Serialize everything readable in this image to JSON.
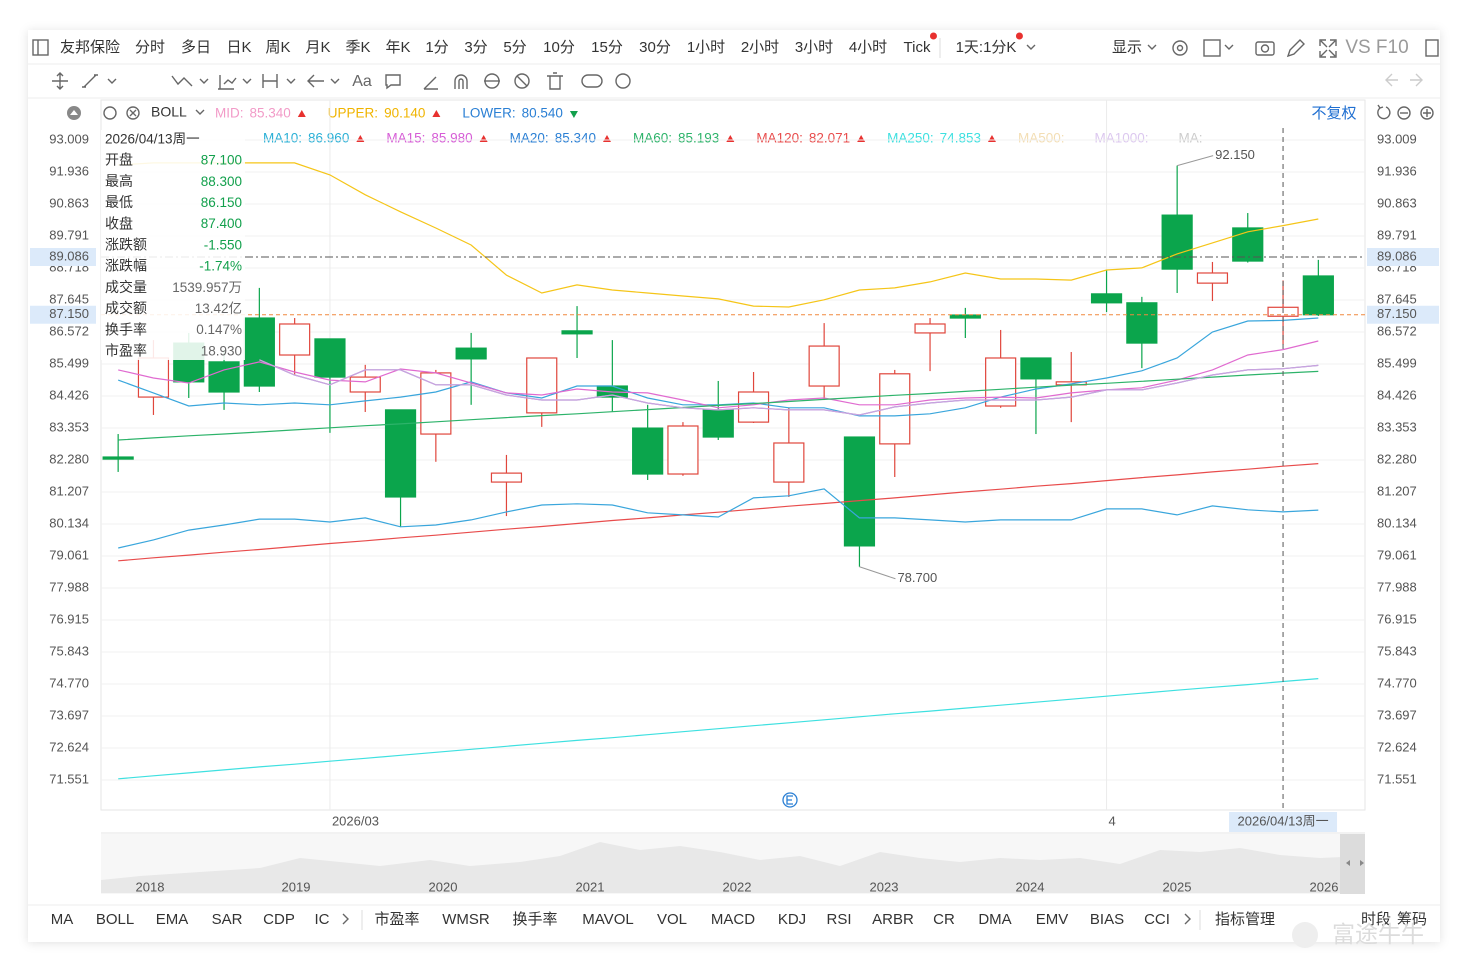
{
  "toolbar": {
    "symbol": "友邦保险",
    "periods": [
      {
        "label": "分时"
      },
      {
        "label": "多日"
      },
      {
        "label": "日K",
        "active": true
      },
      {
        "label": "周K"
      },
      {
        "label": "月K"
      },
      {
        "label": "季K"
      },
      {
        "label": "年K"
      },
      {
        "label": "1分"
      },
      {
        "label": "3分"
      },
      {
        "label": "5分"
      },
      {
        "label": "10分"
      },
      {
        "label": "15分"
      },
      {
        "label": "30分"
      },
      {
        "label": "1小时"
      },
      {
        "label": "2小时"
      },
      {
        "label": "3小时"
      },
      {
        "label": "4小时"
      },
      {
        "label": "Tick",
        "dot": true
      },
      {
        "label": "1天:1分K",
        "dot": true
      }
    ],
    "display": "显示",
    "compare": "VS F10",
    "font_tool": "Aa"
  },
  "adjust": "不复权",
  "info_panel": {
    "date": "2026/04/13周一",
    "rows": [
      {
        "label": "开盘",
        "value": "87.100",
        "color": "#12a04c"
      },
      {
        "label": "最高",
        "value": "88.300",
        "color": "#12a04c"
      },
      {
        "label": "最低",
        "value": "86.150",
        "color": "#12a04c"
      },
      {
        "label": "收盘",
        "value": "87.400",
        "color": "#12a04c"
      },
      {
        "label": "涨跌额",
        "value": "-1.550",
        "color": "#12a04c"
      },
      {
        "label": "涨跌幅",
        "value": "-1.74%",
        "color": "#12a04c"
      },
      {
        "label": "成交量",
        "value": "1539.957万",
        "color": "#666"
      },
      {
        "label": "成交额",
        "value": "13.42亿",
        "color": "#666"
      },
      {
        "label": "换手率",
        "value": "0.147%",
        "color": "#666"
      },
      {
        "label": "市盈率",
        "value": "18.930",
        "color": "#666"
      }
    ]
  },
  "navigator": {
    "years": [
      "2018",
      "2019",
      "2020",
      "2021",
      "2022",
      "2023",
      "2024",
      "2025",
      "2026"
    ]
  },
  "tabs": {
    "left": [
      {
        "label": "MA",
        "active": true
      },
      {
        "label": "BOLL",
        "active": true
      },
      {
        "label": "EMA"
      },
      {
        "label": "SAR"
      },
      {
        "label": "CDP"
      },
      {
        "label": "IC"
      }
    ],
    "right": [
      {
        "label": "市盈率"
      },
      {
        "label": "WMSR"
      },
      {
        "label": "换手率"
      },
      {
        "label": "MAVOL"
      },
      {
        "label": "VOL"
      },
      {
        "label": "MACD"
      },
      {
        "label": "KDJ"
      },
      {
        "label": "RSI"
      },
      {
        "label": "ARBR"
      },
      {
        "label": "CR"
      },
      {
        "label": "DMA"
      },
      {
        "label": "EMV"
      },
      {
        "label": "BIAS"
      },
      {
        "label": "CCI"
      }
    ],
    "manage": "指标管理",
    "period": "时段",
    "chips": "筹码"
  },
  "watermark": "富途牛牛",
  "chart_data": {
    "type": "candlestick",
    "categories": [
      null,
      null,
      null,
      null,
      null,
      null,
      "2026/03",
      null,
      null,
      null,
      null,
      null,
      null,
      null,
      null,
      null,
      null,
      null,
      null,
      null,
      null,
      null,
      null,
      null,
      null,
      null,
      null,
      null,
      "4",
      null,
      null,
      null,
      null,
      "2026/04/13周一",
      null
    ],
    "crosshair": "2026/04/13周一",
    "open": [
      82.38,
      84.39,
      86.2,
      85.57,
      87.04,
      85.8,
      86.34,
      84.56,
      83.96,
      83.15,
      86.03,
      81.54,
      83.86,
      86.61,
      84.76,
      83.35,
      81.81,
      83.96,
      83.55,
      81.54,
      84.76,
      83.05,
      82.82,
      86.54,
      87.14,
      84.09,
      85.7,
      84.8,
      87.85,
      87.55,
      90.49,
      88.21,
      90.06,
      87.1,
      88.45
    ],
    "high": [
      83.15,
      86.3,
      86.54,
      85.97,
      88.05,
      87.04,
      86.34,
      85.47,
      83.96,
      85.3,
      86.54,
      82.45,
      85.7,
      87.44,
      86.3,
      84.13,
      83.55,
      84.93,
      85.23,
      84.03,
      86.87,
      83.05,
      85.3,
      87.04,
      87.38,
      86.64,
      85.7,
      85.9,
      88.65,
      87.75,
      92.15,
      88.92,
      90.56,
      88.3,
      88.99
    ],
    "low": [
      81.88,
      83.79,
      84.36,
      83.96,
      84.56,
      85.13,
      83.19,
      83.89,
      80.04,
      82.22,
      84.13,
      80.4,
      83.39,
      85.7,
      83.89,
      81.61,
      81.75,
      82.95,
      83.52,
      81.04,
      84.29,
      78.7,
      81.71,
      85.26,
      86.37,
      84.03,
      83.15,
      83.55,
      87.24,
      85.36,
      87.88,
      87.61,
      88.9,
      86.15,
      87.11
    ],
    "close": [
      82.31,
      85.7,
      84.9,
      84.56,
      84.76,
      86.84,
      85.06,
      85.06,
      81.04,
      85.2,
      85.67,
      81.84,
      85.7,
      86.51,
      84.39,
      81.81,
      83.42,
      83.05,
      84.56,
      82.85,
      86.1,
      79.4,
      85.17,
      86.84,
      87.04,
      85.7,
      85.0,
      84.9,
      87.55,
      86.2,
      88.68,
      88.55,
      88.95,
      87.4,
      87.15
    ],
    "up_color": "#e0463c",
    "down_color": "#0ba54c",
    "ylim": [
      70.545,
      94.35
    ],
    "yticks": [
      {
        "value": 93.009,
        "label": "93.009"
      },
      {
        "value": 91.936,
        "label": "91.936"
      },
      {
        "value": 90.863,
        "label": "90.863"
      },
      {
        "value": 89.791,
        "label": "89.791"
      },
      {
        "value": 88.718,
        "label": "88.718"
      },
      {
        "value": 87.645,
        "label": "87.645"
      },
      {
        "value": 86.572,
        "label": "86.572"
      },
      {
        "value": 85.499,
        "label": "85.499"
      },
      {
        "value": 84.426,
        "label": "84.426"
      },
      {
        "value": 83.353,
        "label": "83.353"
      },
      {
        "value": 82.28,
        "label": "82.280"
      },
      {
        "value": 81.207,
        "label": "81.207"
      },
      {
        "value": 80.134,
        "label": "80.134"
      },
      {
        "value": 79.061,
        "label": "79.061"
      },
      {
        "value": 77.988,
        "label": "77.988"
      },
      {
        "value": 76.915,
        "label": "76.915"
      },
      {
        "value": 75.843,
        "label": "75.843"
      },
      {
        "value": 74.77,
        "label": "74.770"
      },
      {
        "value": 73.697,
        "label": "73.697"
      },
      {
        "value": 72.624,
        "label": "72.624"
      },
      {
        "value": 71.551,
        "label": "71.551"
      }
    ],
    "grid": true,
    "price_lines": [
      {
        "value": 89.086,
        "label": "89.086",
        "color": "#555555",
        "dash": "8 3 2 3"
      },
      {
        "value": 87.15,
        "label": "87.150",
        "color": "#f0883e",
        "dash": "4 3"
      }
    ],
    "extreme_labels": [
      {
        "value": 92.15,
        "label": "92.150"
      },
      {
        "value": 78.7,
        "label": "78.700"
      }
    ],
    "boll_label": "BOLL",
    "boll_series": [
      {
        "name": "MID:",
        "color": "#f29bc8",
        "line_color": "#c9a3e0",
        "trend": "up",
        "value_label": "85.340",
        "values": [
          null,
          null,
          null,
          null,
          85.64,
          85.13,
          84.8,
          85.3,
          85.3,
          84.8,
          84.8,
          84.46,
          84.29,
          84.29,
          84.46,
          84.19,
          84.03,
          83.96,
          84.03,
          83.96,
          83.96,
          83.79,
          84.06,
          84.19,
          84.29,
          84.29,
          84.29,
          84.39,
          84.63,
          84.63,
          84.86,
          85.13,
          85.3,
          85.34,
          85.45
        ]
      },
      {
        "name": "UPPER:",
        "color": "#f0b400",
        "line_color": "#f5c518",
        "trend": "up",
        "value_label": "90.140",
        "values": [
          92.17,
          92.24,
          92.24,
          92.24,
          92.24,
          92.24,
          91.84,
          91.17,
          90.6,
          90.06,
          89.49,
          88.48,
          87.88,
          88.15,
          87.98,
          87.88,
          87.78,
          87.68,
          87.44,
          87.41,
          87.65,
          87.98,
          88.05,
          88.25,
          88.55,
          88.35,
          88.35,
          88.31,
          88.65,
          88.72,
          89.19,
          89.56,
          89.93,
          90.14,
          90.36
        ]
      },
      {
        "name": "LOWER:",
        "color": "#2a7fd4",
        "line_color": "#3aa6dc",
        "trend": "down",
        "value_label": "80.540",
        "values": [
          79.33,
          79.6,
          79.93,
          80.1,
          80.3,
          80.3,
          80.2,
          80.34,
          80.04,
          80.1,
          80.27,
          80.54,
          80.77,
          80.81,
          80.77,
          80.51,
          80.44,
          80.37,
          81.01,
          81.08,
          81.31,
          80.34,
          80.34,
          80.27,
          80.2,
          80.27,
          80.27,
          80.27,
          80.64,
          80.64,
          80.44,
          80.74,
          80.61,
          80.54,
          80.6
        ]
      }
    ],
    "ma_series": [
      {
        "name": "MA10:",
        "color": "#2bb0d6",
        "line_color": "#3aa6dc",
        "trend": "up",
        "value_label": "86.960",
        "values": [
          84.96,
          84.53,
          84.09,
          84.19,
          84.13,
          84.19,
          84.13,
          84.26,
          84.39,
          84.56,
          84.9,
          84.53,
          84.36,
          84.76,
          84.76,
          84.36,
          84.13,
          84.13,
          84.19,
          84.03,
          84.03,
          83.76,
          83.76,
          83.83,
          84.03,
          84.39,
          84.66,
          84.83,
          85.03,
          85.27,
          85.7,
          86.57,
          86.94,
          86.96,
          87.04
        ]
      },
      {
        "name": "MA15:",
        "color": "#d65dd6",
        "line_color": "#e06bd0",
        "trend": "up",
        "value_label": "85.980",
        "values": [
          85.3,
          85.03,
          84.86,
          85.3,
          85.57,
          85.23,
          84.96,
          84.9,
          85.33,
          85.2,
          84.86,
          84.53,
          84.46,
          84.66,
          84.56,
          84.53,
          84.29,
          84.03,
          84.13,
          84.29,
          84.36,
          84.13,
          84.13,
          84.29,
          84.36,
          84.39,
          84.36,
          84.53,
          84.63,
          84.7,
          84.96,
          85.3,
          85.8,
          85.98,
          86.27
        ]
      },
      {
        "name": "MA20:",
        "color": "#2a7fd4",
        "line_color": "#9d8fc4",
        "trend": "up",
        "value_label": "85.340",
        "values": [
          null,
          null,
          null,
          null,
          85.64,
          85.13,
          84.8,
          85.3,
          85.3,
          84.8,
          84.8,
          84.46,
          84.29,
          84.29,
          84.46,
          84.19,
          84.03,
          83.96,
          84.03,
          83.96,
          83.96,
          83.79,
          84.06,
          84.19,
          84.29,
          84.29,
          84.29,
          84.39,
          84.63,
          84.63,
          84.86,
          85.13,
          85.3,
          85.34,
          85.45
        ]
      },
      {
        "name": "MA60:",
        "color": "#2db36a",
        "line_color": "#2db36a",
        "trend": "up",
        "value_label": "85.193",
        "values": [
          82.95,
          83.02,
          83.09,
          83.15,
          83.22,
          83.29,
          83.36,
          83.43,
          83.49,
          83.56,
          83.63,
          83.7,
          83.77,
          83.83,
          83.9,
          83.97,
          84.04,
          84.11,
          84.17,
          84.24,
          84.31,
          84.38,
          84.45,
          84.51,
          84.58,
          84.65,
          84.72,
          84.79,
          84.85,
          84.92,
          84.99,
          85.06,
          85.13,
          85.193,
          85.25
        ]
      },
      {
        "name": "MA120:",
        "color": "#e84c4c",
        "line_color": "#e84c4c",
        "trend": "up",
        "value_label": "82.071",
        "values": [
          78.9,
          79.0,
          79.09,
          79.19,
          79.28,
          79.38,
          79.48,
          79.57,
          79.67,
          79.76,
          79.86,
          79.96,
          80.05,
          80.15,
          80.25,
          80.34,
          80.44,
          80.53,
          80.63,
          80.73,
          80.82,
          80.92,
          81.01,
          81.11,
          81.21,
          81.3,
          81.4,
          81.49,
          81.59,
          81.69,
          81.78,
          81.88,
          81.97,
          82.071,
          82.16
        ]
      },
      {
        "name": "MA250:",
        "color": "#3ee0e0",
        "line_color": "#3ee0e0",
        "trend": "up",
        "value_label": "74.853",
        "values": [
          71.59,
          71.69,
          71.79,
          71.89,
          71.99,
          72.08,
          72.18,
          72.28,
          72.38,
          72.48,
          72.58,
          72.68,
          72.78,
          72.88,
          72.97,
          73.07,
          73.17,
          73.27,
          73.37,
          73.47,
          73.57,
          73.67,
          73.77,
          73.86,
          73.96,
          74.06,
          74.16,
          74.26,
          74.36,
          74.46,
          74.56,
          74.66,
          74.75,
          74.853,
          74.95
        ]
      }
    ],
    "inactive_legend": [
      {
        "name": "MA500:",
        "color": "#f3deb4"
      },
      {
        "name": "MA1000:",
        "color": "#dcc8ef"
      },
      {
        "name": "MA:",
        "color": "#cccccc"
      }
    ]
  }
}
